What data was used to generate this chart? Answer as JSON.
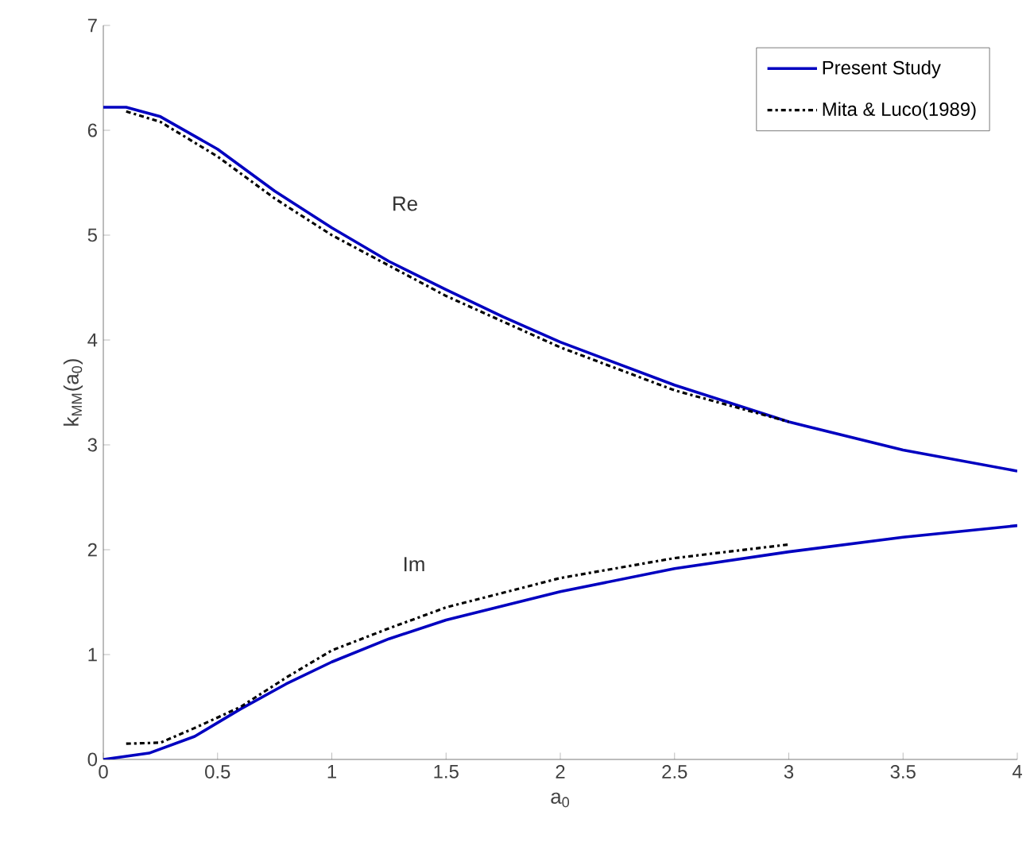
{
  "chart_data": {
    "type": "line",
    "xlabel": "a$_{0}$",
    "ylabel": "k$_{MM}$(a$_{0}$)",
    "xlim": [
      0,
      4
    ],
    "ylim": [
      0,
      7
    ],
    "xticks": [
      0,
      0.5,
      1,
      1.5,
      2,
      2.5,
      3,
      3.5,
      4
    ],
    "yticks": [
      0,
      1,
      2,
      3,
      4,
      5,
      6,
      7
    ],
    "grid": false,
    "legend": "top right",
    "annotations": [
      "Re",
      "Im"
    ],
    "series": [
      {
        "name": "Present Study",
        "color": "#0000c0",
        "line_style": "solid",
        "x": [
          0,
          0.1,
          0.25,
          0.5,
          0.75,
          1,
          1.25,
          1.5,
          1.75,
          2,
          2.5,
          3,
          3.5,
          4
        ],
        "values": [
          6.22,
          6.22,
          6.13,
          5.82,
          5.42,
          5.07,
          4.75,
          4.48,
          4.22,
          3.98,
          3.57,
          3.22,
          2.95,
          2.75
        ]
      },
      {
        "name": "Mita & Luco(1989)",
        "color": "#000000",
        "line_style": "dashdot",
        "x": [
          0.1,
          0.25,
          0.5,
          0.75,
          1,
          1.5,
          2,
          2.5,
          3
        ],
        "values": [
          6.18,
          6.08,
          5.75,
          5.35,
          5.0,
          4.42,
          3.93,
          3.52,
          3.22
        ]
      },
      {
        "color": "#0000c0",
        "line_style": "solid",
        "x": [
          0,
          0.2,
          0.4,
          0.6,
          0.8,
          1,
          1.25,
          1.5,
          2,
          2.5,
          3,
          3.5,
          4
        ],
        "values": [
          0,
          0.06,
          0.22,
          0.48,
          0.72,
          0.93,
          1.15,
          1.33,
          1.6,
          1.82,
          1.98,
          2.12,
          2.23
        ]
      },
      {
        "color": "#000000",
        "line_style": "dashdot",
        "x": [
          0.1,
          0.25,
          0.4,
          0.6,
          0.8,
          1,
          1.25,
          1.5,
          2,
          2.5,
          3
        ],
        "values": [
          0.15,
          0.16,
          0.3,
          0.5,
          0.78,
          1.04,
          1.25,
          1.45,
          1.73,
          1.92,
          2.05
        ]
      }
    ]
  }
}
